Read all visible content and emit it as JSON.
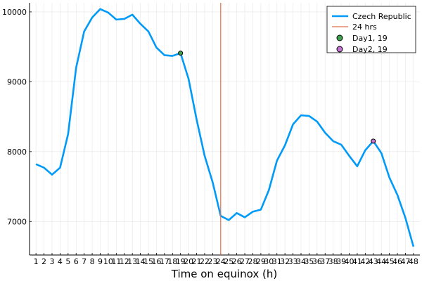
{
  "chart_data": {
    "type": "line",
    "xlabel": "Time on equinox (h)",
    "ylabel": "",
    "title": "",
    "x_ticks": [
      1,
      2,
      3,
      4,
      5,
      6,
      7,
      8,
      9,
      10,
      11,
      12,
      13,
      14,
      15,
      16,
      17,
      18,
      19,
      20,
      21,
      22,
      23,
      24,
      25,
      26,
      27,
      28,
      29,
      30,
      31,
      32,
      33,
      34,
      35,
      36,
      37,
      38,
      39,
      40,
      41,
      42,
      43,
      44,
      45,
      46,
      47,
      48
    ],
    "y_ticks": [
      7000,
      8000,
      9000,
      10000
    ],
    "xlim": [
      0.2,
      48.8
    ],
    "ylim": [
      6520,
      10130
    ],
    "grid": true,
    "legend_position": "top-right",
    "series": [
      {
        "name": "Czech Republic",
        "color": "#009af9",
        "x": [
          1,
          2,
          3,
          4,
          5,
          6,
          7,
          8,
          9,
          10,
          11,
          12,
          13,
          14,
          15,
          16,
          17,
          18,
          19,
          20,
          21,
          22,
          23,
          24,
          25,
          26,
          27,
          28,
          29,
          30,
          31,
          32,
          33,
          34,
          35,
          36,
          37,
          38,
          39,
          40,
          41,
          42,
          43,
          44,
          45,
          46,
          47,
          48
        ],
        "y": [
          7820,
          7770,
          7670,
          7770,
          8250,
          9200,
          9720,
          9920,
          10040,
          9990,
          9890,
          9900,
          9960,
          9830,
          9720,
          9490,
          9380,
          9370,
          9410,
          9040,
          8460,
          7940,
          7560,
          7080,
          7020,
          7120,
          7060,
          7140,
          7170,
          7450,
          7870,
          8090,
          8390,
          8520,
          8510,
          8430,
          8270,
          8150,
          8100,
          7940,
          7790,
          8020,
          8150,
          7980,
          7630,
          7380,
          7050,
          6640
        ]
      }
    ],
    "vline": {
      "name": "24 hrs",
      "x": 24,
      "color": "#e26f46"
    },
    "points": [
      {
        "name": "Day1, 19",
        "x": 19,
        "y": 9410,
        "color": "#3da44d"
      },
      {
        "name": "Day2, 19",
        "x": 43,
        "y": 8150,
        "color": "#c271d2"
      }
    ]
  }
}
